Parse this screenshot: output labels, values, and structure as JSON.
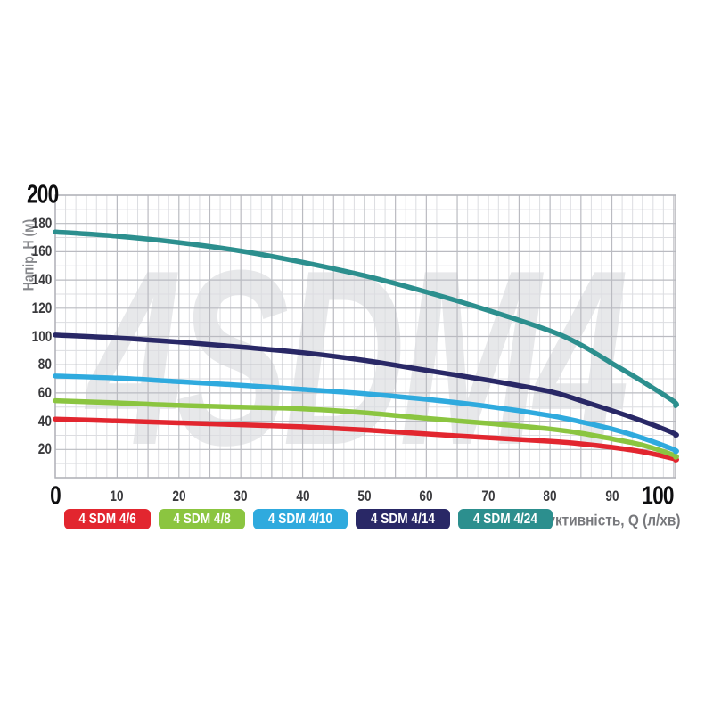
{
  "watermark": {
    "text": "4SDM4"
  },
  "chart_data": {
    "type": "line",
    "title": "",
    "xlabel": "Продуктивність, Q (л/хв)",
    "ylabel": "Напір, H (м)",
    "xlim": [
      0,
      100.3
    ],
    "ylim": [
      0,
      200
    ],
    "grid": {
      "x_minor": 1.6667,
      "x_major": 5,
      "y_minor": 10,
      "y_major": 20,
      "visible": true
    },
    "legend_position": "bottom-left",
    "xticks": [
      {
        "v": 0,
        "em": true
      },
      {
        "v": 10
      },
      {
        "v": 20
      },
      {
        "v": 30
      },
      {
        "v": 40
      },
      {
        "v": 50
      },
      {
        "v": 60
      },
      {
        "v": 70
      },
      {
        "v": 80
      },
      {
        "v": 90
      },
      {
        "v": 100,
        "em": true
      }
    ],
    "yticks": [
      {
        "v": 200,
        "em": true
      },
      {
        "v": 180
      },
      {
        "v": 160
      },
      {
        "v": 140
      },
      {
        "v": 120
      },
      {
        "v": 100
      },
      {
        "v": 80
      },
      {
        "v": 60
      },
      {
        "v": 40
      },
      {
        "v": 20
      }
    ],
    "series": [
      {
        "name": "4 SDM 4/6",
        "color": "#e2262f",
        "points": [
          [
            0,
            41.5
          ],
          [
            10,
            40.2
          ],
          [
            20,
            38.8
          ],
          [
            30,
            37.5
          ],
          [
            40,
            36
          ],
          [
            50,
            33.8
          ],
          [
            60,
            31
          ],
          [
            70,
            28.3
          ],
          [
            80,
            25.8
          ],
          [
            85,
            24
          ],
          [
            90,
            21.5
          ],
          [
            95,
            18.3
          ],
          [
            100,
            13.5
          ],
          [
            100.3,
            12.5
          ]
        ]
      },
      {
        "name": "4 SDM 4/8",
        "color": "#8bc540",
        "points": [
          [
            0,
            54.5
          ],
          [
            10,
            53
          ],
          [
            20,
            51.2
          ],
          [
            30,
            50
          ],
          [
            40,
            48.8
          ],
          [
            50,
            46
          ],
          [
            60,
            42
          ],
          [
            70,
            38.5
          ],
          [
            80,
            34.5
          ],
          [
            85,
            31.5
          ],
          [
            90,
            27.5
          ],
          [
            95,
            23
          ],
          [
            100,
            16
          ],
          [
            100.3,
            14.5
          ]
        ]
      },
      {
        "name": "4 SDM 4/10",
        "color": "#2faade",
        "points": [
          [
            0,
            72
          ],
          [
            10,
            70.5
          ],
          [
            20,
            68
          ],
          [
            30,
            65.5
          ],
          [
            40,
            62.5
          ],
          [
            50,
            59.5
          ],
          [
            60,
            55.5
          ],
          [
            70,
            50.5
          ],
          [
            80,
            44
          ],
          [
            85,
            39.5
          ],
          [
            90,
            34.5
          ],
          [
            95,
            28
          ],
          [
            100,
            20
          ],
          [
            100.3,
            18.5
          ]
        ]
      },
      {
        "name": "4 SDM 4/14",
        "color": "#292866",
        "points": [
          [
            0,
            101
          ],
          [
            10,
            99
          ],
          [
            20,
            96
          ],
          [
            30,
            92.5
          ],
          [
            40,
            88.5
          ],
          [
            50,
            83
          ],
          [
            60,
            76
          ],
          [
            70,
            69
          ],
          [
            80,
            61
          ],
          [
            85,
            54.5
          ],
          [
            90,
            47.5
          ],
          [
            95,
            40
          ],
          [
            100,
            31.5
          ],
          [
            100.3,
            30
          ]
        ]
      },
      {
        "name": "4 SDM 4/24",
        "color": "#2c8f8e",
        "points": [
          [
            0,
            174
          ],
          [
            10,
            171
          ],
          [
            20,
            166.5
          ],
          [
            30,
            160.5
          ],
          [
            40,
            152.5
          ],
          [
            50,
            143
          ],
          [
            60,
            131.5
          ],
          [
            70,
            118.5
          ],
          [
            80,
            104
          ],
          [
            85,
            94
          ],
          [
            90,
            81
          ],
          [
            95,
            68
          ],
          [
            100,
            54
          ],
          [
            100.3,
            51
          ]
        ]
      }
    ]
  }
}
